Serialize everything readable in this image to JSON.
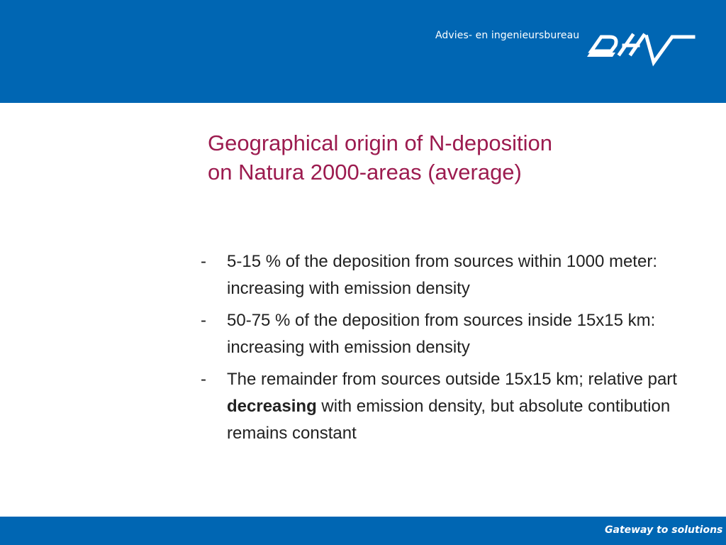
{
  "header": {
    "tagline": "Advies- en ingenieursbureau",
    "logo_text": "DHV",
    "background_color": "#0066b3"
  },
  "slide": {
    "title_line1": "Geographical origin of N-deposition",
    "title_line2": "on Natura 2000-areas (average)",
    "title_color": "#9c1b4f",
    "bullet_marker": "-",
    "bullets": [
      {
        "text": "5-15 % of the deposition from sources within 1000 meter: increasing with emission density"
      },
      {
        "text": "50-75 % of the deposition from sources inside 15x15 km: increasing with emission density"
      },
      {
        "text_before": "The remainder from sources outside 15x15 km; relative part ",
        "text_bold": "decreasing",
        "text_after": " with emission density, but absolute contibution remains constant"
      }
    ]
  },
  "footer": {
    "tagline": "Gateway to solutions"
  }
}
